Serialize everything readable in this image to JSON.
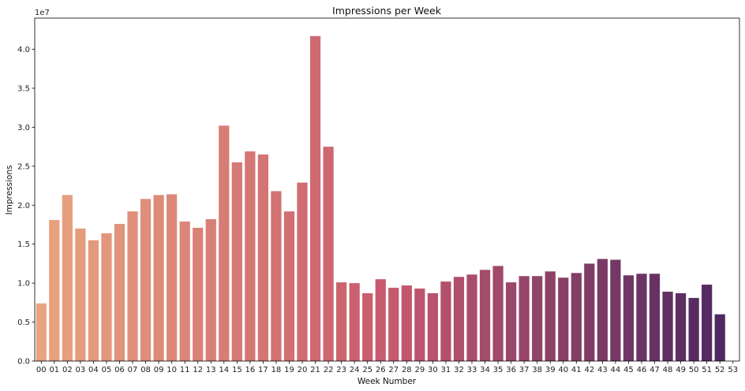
{
  "chart_data": {
    "type": "bar",
    "title": "Impressions per Week",
    "xlabel": "Week Number",
    "ylabel": "Impressions",
    "offset_text": "1e7",
    "ylim": [
      0,
      4.4
    ],
    "yticks": [
      "0.0",
      "0.5",
      "1.0",
      "1.5",
      "2.0",
      "2.5",
      "3.0",
      "3.5",
      "4.0"
    ],
    "grid": false,
    "categories": [
      "00",
      "01",
      "02",
      "03",
      "04",
      "05",
      "06",
      "07",
      "08",
      "09",
      "10",
      "11",
      "12",
      "13",
      "14",
      "15",
      "16",
      "17",
      "18",
      "19",
      "20",
      "21",
      "22",
      "23",
      "24",
      "25",
      "26",
      "27",
      "28",
      "29",
      "30",
      "31",
      "32",
      "33",
      "34",
      "35",
      "36",
      "37",
      "38",
      "39",
      "40",
      "41",
      "42",
      "43",
      "44",
      "45",
      "46",
      "47",
      "48",
      "49",
      "50",
      "51",
      "52",
      "53"
    ],
    "values": [
      0.74,
      1.81,
      2.13,
      1.7,
      1.55,
      1.64,
      1.76,
      1.92,
      2.08,
      2.13,
      2.14,
      1.79,
      1.71,
      1.82,
      3.02,
      2.55,
      2.69,
      2.65,
      2.18,
      1.92,
      2.29,
      4.17,
      2.75,
      1.01,
      1.0,
      0.87,
      1.05,
      0.94,
      0.97,
      0.93,
      0.87,
      1.02,
      1.08,
      1.11,
      1.17,
      1.22,
      1.01,
      1.09,
      1.09,
      1.15,
      1.07,
      1.13,
      1.25,
      1.31,
      1.3,
      1.1,
      1.12,
      1.12,
      0.89,
      0.87,
      0.81,
      0.98,
      0.6,
      null
    ],
    "palette": "flare",
    "color_start": "#e8a47f",
    "color_end": "#4a2660"
  }
}
